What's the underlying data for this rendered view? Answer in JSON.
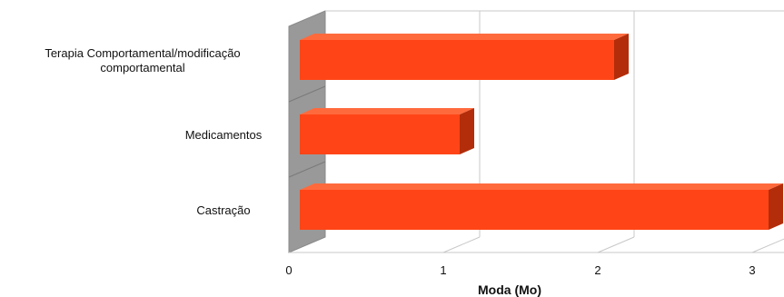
{
  "chart_data": {
    "type": "bar",
    "orientation": "horizontal",
    "style": "3d",
    "title": "",
    "categories": [
      "Terapia Comportamental/modificação comportamental",
      "Medicamentos",
      "Castração"
    ],
    "category_label_lines": [
      [
        "Terapia Comportamental/modificação",
        "comportamental"
      ],
      [
        "Medicamentos"
      ],
      [
        "Castração"
      ]
    ],
    "values": [
      2,
      1,
      3
    ],
    "xlabel": "Moda (Mo)",
    "ylabel": "",
    "xlim": [
      0,
      3
    ],
    "xticks": [
      "0",
      "1",
      "2",
      "3"
    ],
    "grid": true,
    "legend": "none",
    "colors": {
      "bar_front": "#ff4517",
      "bar_top": "#ff6a3d",
      "bar_side": "#b32d0a",
      "wall": "#999999",
      "grid": "#c8c8c8"
    }
  }
}
